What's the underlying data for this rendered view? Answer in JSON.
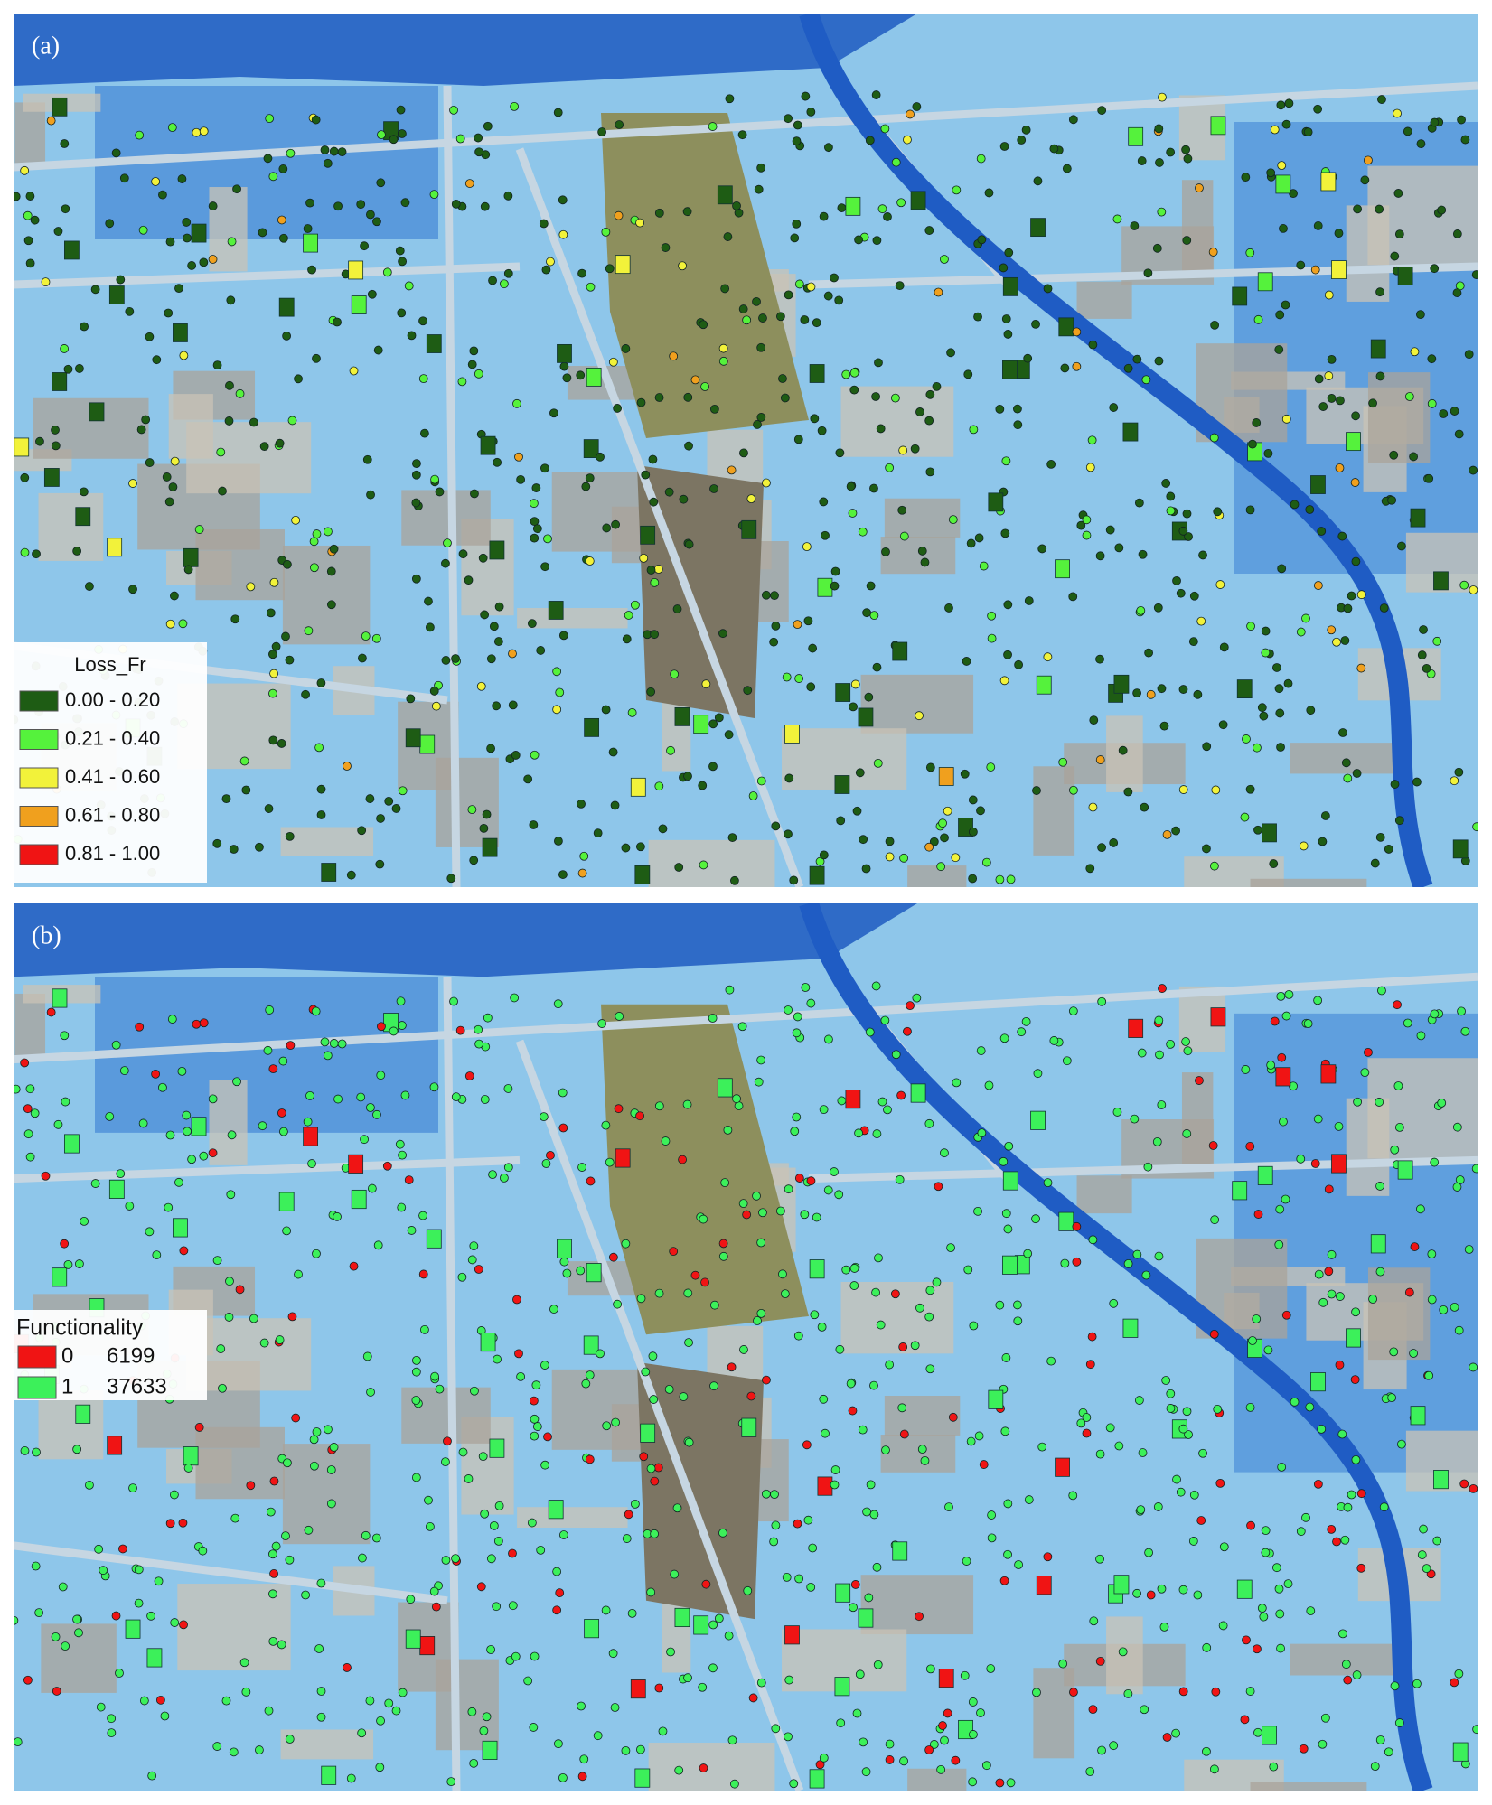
{
  "panels": [
    {
      "label": "(a)",
      "legend": {
        "title": "Loss_Fr",
        "items": [
          {
            "label": "0.00 - 0.20",
            "color": "#1e5c14"
          },
          {
            "label": "0.21 - 0.40",
            "color": "#55f23c"
          },
          {
            "label": "0.41 - 0.60",
            "color": "#f2f23a"
          },
          {
            "label": "0.61 - 0.80",
            "color": "#f0a01e"
          },
          {
            "label": "0.81 - 1.00",
            "color": "#f01414"
          }
        ]
      }
    },
    {
      "label": "(b)",
      "legend": {
        "title": "Functionality",
        "items": [
          {
            "label": "0",
            "count": 6199,
            "color": "#f01414"
          },
          {
            "label": "1",
            "count": 37633,
            "color": "#3cf05a"
          }
        ]
      }
    }
  ]
}
